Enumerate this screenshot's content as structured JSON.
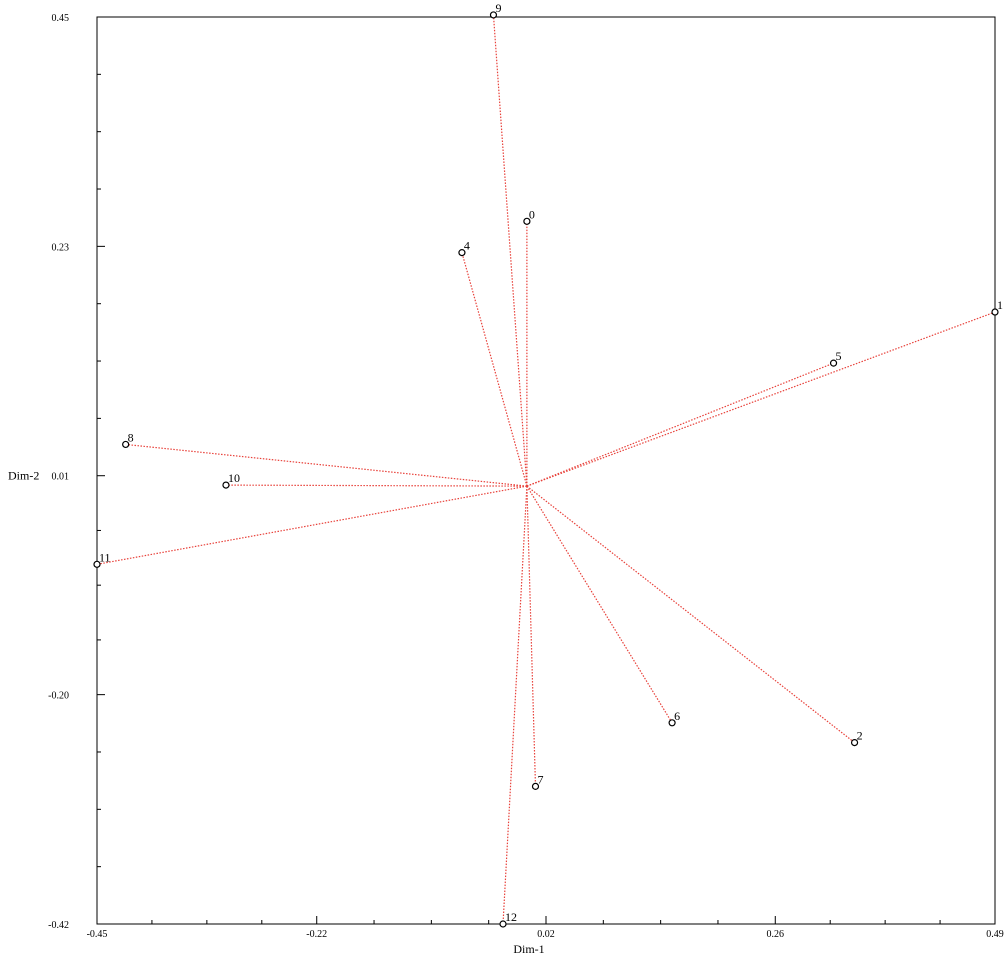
{
  "chart_data": {
    "type": "scatter",
    "title": "",
    "xlabel": "Dim-1",
    "ylabel": "Dim-2",
    "xlim": [
      -0.45,
      0.49
    ],
    "ylim": [
      -0.42,
      0.45
    ],
    "x_ticks": [
      "-0.45",
      "-0.22",
      "0.02",
      "0.26",
      "0.49"
    ],
    "y_ticks": [
      "0.45",
      "0.23",
      "0.01",
      "-0.20",
      "-0.42"
    ],
    "grid": false,
    "legend": "none",
    "vector_origin": [
      0.0,
      0.0
    ],
    "vector_color": "#e8413a",
    "point_color": "#000000",
    "points": [
      {
        "label": "0",
        "x": 0.0,
        "y": 0.254
      },
      {
        "label": "1",
        "x": 0.49,
        "y": 0.167
      },
      {
        "label": "2",
        "x": 0.343,
        "y": -0.246
      },
      {
        "label": "4",
        "x": -0.068,
        "y": 0.224
      },
      {
        "label": "5",
        "x": 0.321,
        "y": 0.118
      },
      {
        "label": "6",
        "x": 0.152,
        "y": -0.227
      },
      {
        "label": "7",
        "x": 0.009,
        "y": -0.288
      },
      {
        "label": "8",
        "x": -0.42,
        "y": 0.04
      },
      {
        "label": "9",
        "x": -0.035,
        "y": 0.452
      },
      {
        "label": "10",
        "x": -0.315,
        "y": 0.001
      },
      {
        "label": "11",
        "x": -0.45,
        "y": -0.075
      },
      {
        "label": "12",
        "x": -0.025,
        "y": -0.42
      }
    ]
  }
}
